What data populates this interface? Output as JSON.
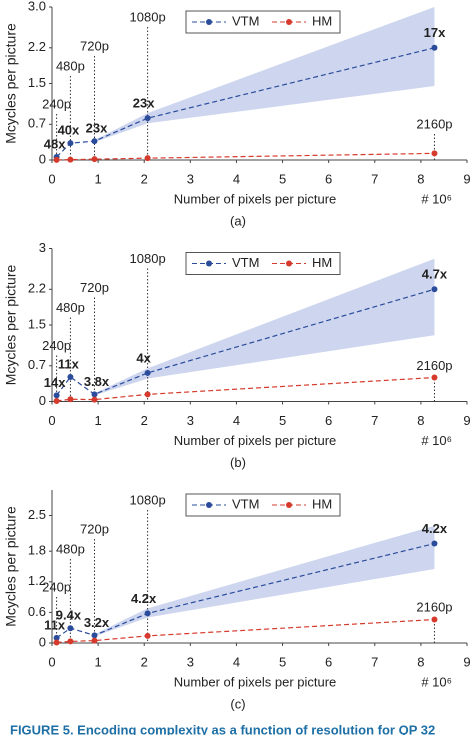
{
  "chart_data": [
    {
      "type": "line",
      "panel_label": "(a)",
      "y_label": "Mcycles per picture",
      "x_label": "Number of pixels per picture",
      "x_unit": "# 10⁶",
      "legend": "top",
      "x": [
        0.09984,
        0.39936,
        0.9216,
        2.0736,
        8.2944
      ],
      "resolution_labels": [
        "240p",
        "480p",
        "720p",
        "1080p",
        "2160p"
      ],
      "point_labels": [
        "48x",
        "40x",
        "23x",
        "23x",
        "17x"
      ],
      "series": [
        {
          "name": "VTM",
          "color": "#2b4c9b",
          "values": [
            0.06,
            0.33,
            0.37,
            0.82,
            2.2
          ],
          "band_lower": [
            null,
            null,
            0.35,
            0.72,
            1.45
          ],
          "band_upper": [
            null,
            null,
            0.39,
            0.92,
            3.0
          ],
          "band_color": "#cdd6ee"
        },
        {
          "name": "HM",
          "color": "#d63a2c",
          "values": [
            0.0013,
            0.008,
            0.016,
            0.036,
            0.13
          ]
        }
      ],
      "xlim": [
        0,
        9
      ],
      "xticks": [
        0,
        1,
        2,
        3,
        4,
        5,
        6,
        7,
        8,
        9
      ],
      "ylim": [
        0,
        3
      ],
      "yticks": [
        0,
        0.7,
        1.5,
        2.2,
        {
          "value": 3,
          "label": "3.0"
        }
      ]
    },
    {
      "type": "line",
      "panel_label": "(b)",
      "y_label": "Mcycles per picture",
      "x_label": "Number of pixels per picture",
      "x_unit": "# 10⁶",
      "legend": "top",
      "x": [
        0.09984,
        0.39936,
        0.9216,
        2.0736,
        8.2944
      ],
      "resolution_labels": [
        "240p",
        "480p",
        "720p",
        "1080p",
        "2160p"
      ],
      "point_labels": [
        "14x",
        "11x",
        "3.8x",
        "4x",
        "4.7x"
      ],
      "series": [
        {
          "name": "VTM",
          "color": "#2b4c9b",
          "values": [
            0.12,
            0.48,
            0.14,
            0.56,
            2.2
          ],
          "band_lower": [
            null,
            null,
            0.12,
            0.45,
            1.3
          ],
          "band_upper": [
            null,
            null,
            0.16,
            0.65,
            2.8
          ],
          "band_color": "#cdd6ee"
        },
        {
          "name": "HM",
          "color": "#d63a2c",
          "values": [
            0.009,
            0.044,
            0.037,
            0.14,
            0.47
          ]
        }
      ],
      "xlim": [
        0,
        9
      ],
      "xticks": [
        0,
        1,
        2,
        3,
        4,
        5,
        6,
        7,
        8,
        9
      ],
      "ylim": [
        0,
        3
      ],
      "yticks": [
        0,
        0.7,
        1.5,
        2.2,
        3
      ]
    },
    {
      "type": "line",
      "panel_label": "(c)",
      "y_label": "Mcycles per picture",
      "x_label": "Number of pixels per picture",
      "x_unit": "# 10⁶",
      "legend": "top",
      "x": [
        0.09984,
        0.39936,
        0.9216,
        2.0736,
        8.2944
      ],
      "resolution_labels": [
        "240p",
        "480p",
        "720p",
        "1080p",
        "2160p"
      ],
      "point_labels": [
        "11x",
        "9.4x",
        "3.2x",
        "4.2x",
        "4.2x"
      ],
      "series": [
        {
          "name": "VTM",
          "color": "#2b4c9b",
          "values": [
            0.1,
            0.29,
            0.15,
            0.58,
            1.95
          ],
          "band_lower": [
            null,
            null,
            0.13,
            0.5,
            1.45
          ],
          "band_upper": [
            null,
            null,
            0.17,
            0.68,
            2.3
          ],
          "band_color": "#cdd6ee"
        },
        {
          "name": "HM",
          "color": "#d63a2c",
          "values": [
            0.009,
            0.031,
            0.047,
            0.14,
            0.46
          ]
        }
      ],
      "xlim": [
        0,
        9
      ],
      "xticks": [
        0,
        1,
        2,
        3,
        4,
        5,
        6,
        7,
        8,
        9
      ],
      "ylim": [
        0,
        3
      ],
      "yticks": [
        0,
        0.6,
        1.2,
        1.8,
        2.5
      ]
    }
  ],
  "caption": "FIGURE 5. Encoding complexity as a function of resolution for QP 32"
}
